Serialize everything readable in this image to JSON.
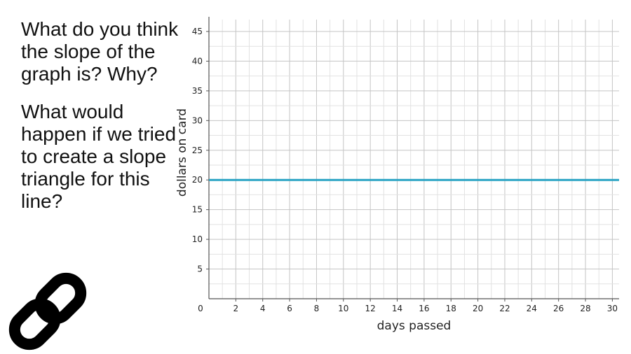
{
  "prompt": {
    "q1": "What do you think the slope of the graph is? Why?",
    "q2": "What would happen if we tried to create a slope triangle for this line?"
  },
  "icons": {
    "link": "link-icon"
  },
  "colors": {
    "line": "#29a3c4",
    "grid": "#cfcfcf",
    "axis": "#555555"
  },
  "chart_data": {
    "type": "line",
    "xlabel": "days passed",
    "ylabel": "dollars on card",
    "xlim": [
      0,
      30.5
    ],
    "ylim": [
      0,
      47
    ],
    "x_ticks": [
      2,
      4,
      6,
      8,
      10,
      12,
      14,
      16,
      18,
      20,
      22,
      24,
      26,
      28,
      30
    ],
    "y_ticks": [
      5,
      10,
      15,
      20,
      25,
      30,
      35,
      40,
      45
    ],
    "origin_label": "0",
    "grid": true,
    "series": [
      {
        "x": [
          0,
          30.5
        ],
        "y": [
          20,
          20
        ]
      }
    ]
  }
}
